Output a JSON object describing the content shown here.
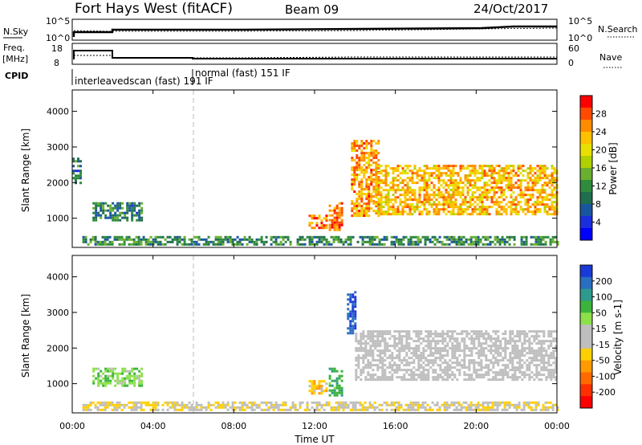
{
  "header": {
    "title": "Fort Hays West (fitACF)",
    "beam": "Beam 09",
    "date": "24/Oct/2017"
  },
  "strip_labels": {
    "nsky": "N.Sky",
    "nsky_ticks": [
      "10^5",
      "10^0"
    ],
    "nsearch": "N.Search",
    "nsearch_ticks": [
      "10^5",
      "10^0"
    ],
    "freq": "Freq.",
    "freq_unit": "[MHz]",
    "freq_ticks": [
      "18",
      "8"
    ],
    "nave": "Nave",
    "nave_ticks": [
      "60",
      "0"
    ],
    "cpid": "CPID",
    "cpid_mode1": "interleavedscan (fast) 191 IF",
    "cpid_mode2": "normal (fast) 151 IF"
  },
  "colorbars": {
    "power": {
      "label": "Power [dB]",
      "ticks": [
        "28",
        "24",
        "20",
        "16",
        "12",
        "8",
        "4"
      ],
      "colors": [
        "#ff0000",
        "#ff4a00",
        "#ff8c00",
        "#ffc000",
        "#e8e000",
        "#b0d000",
        "#6ab030",
        "#2e8c3c",
        "#1f6e4e",
        "#1a56a0",
        "#1a2ee0",
        "#0000ff"
      ]
    },
    "velocity": {
      "label": "Velocity [m s-1]",
      "ticks": [
        "200",
        "100",
        "50",
        "15",
        "-15",
        "-50",
        "-100",
        "-200"
      ],
      "colors": [
        "#1a3ad8",
        "#2a6ec0",
        "#2e9a8e",
        "#3cb43c",
        "#8ce04a",
        "#bebebe",
        "#bebebe",
        "#ffd000",
        "#ff9a00",
        "#ff6a00",
        "#ff3000",
        "#ff0000"
      ]
    }
  },
  "axes": {
    "ylabel": "Slant Range [km]",
    "yticks": [
      "4000",
      "3000",
      "2000",
      "1000"
    ],
    "xlabel": "Time UT",
    "xticks": [
      "00:00",
      "04:00",
      "08:00",
      "12:00",
      "16:00",
      "20:00",
      "00:00"
    ]
  },
  "chart_data": [
    {
      "type": "heatmap",
      "name": "Power",
      "xlabel": "Time UT",
      "ylabel": "Slant Range [km]",
      "xlim_hours": [
        0,
        24
      ],
      "ylim_km": [
        180,
        4600
      ],
      "colorbar": "Power [dB]",
      "echo_regions": [
        {
          "t": [
            0.0,
            0.4
          ],
          "range": [
            2000,
            2700
          ],
          "power_db": 8
        },
        {
          "t": [
            1.0,
            3.4
          ],
          "range": [
            950,
            1450
          ],
          "power_db": 9
        },
        {
          "t": [
            11.7,
            12.6
          ],
          "range": [
            700,
            1100
          ],
          "power_db": 26
        },
        {
          "t": [
            12.7,
            13.3
          ],
          "range": [
            650,
            1450
          ],
          "power_db": 26
        },
        {
          "t": [
            13.8,
            15.2
          ],
          "range": [
            1100,
            3200
          ],
          "power_db": 24
        },
        {
          "t": [
            15.0,
            24.0
          ],
          "range": [
            1100,
            2500
          ],
          "power_db": 22
        },
        {
          "t": [
            0.5,
            24.0
          ],
          "range": [
            250,
            500
          ],
          "power_db": 10
        }
      ]
    },
    {
      "type": "heatmap",
      "name": "Velocity",
      "xlabel": "Time UT",
      "ylabel": "Slant Range [km]",
      "xlim_hours": [
        0,
        24
      ],
      "ylim_km": [
        180,
        4600
      ],
      "colorbar": "Velocity [m s-1]",
      "echo_regions": [
        {
          "t": [
            1.0,
            3.4
          ],
          "range": [
            950,
            1450
          ],
          "velocity": 60
        },
        {
          "t": [
            11.7,
            12.6
          ],
          "range": [
            700,
            1100
          ],
          "velocity": -60
        },
        {
          "t": [
            12.7,
            13.3
          ],
          "range": [
            650,
            1450
          ],
          "velocity": 100
        },
        {
          "t": [
            13.6,
            14.0
          ],
          "range": [
            2400,
            3600
          ],
          "velocity": 180
        },
        {
          "t": [
            14.0,
            24.0
          ],
          "range": [
            1100,
            2500
          ],
          "velocity": 0
        },
        {
          "t": [
            0.5,
            24.0
          ],
          "range": [
            250,
            500
          ],
          "velocity": -30
        }
      ]
    }
  ]
}
